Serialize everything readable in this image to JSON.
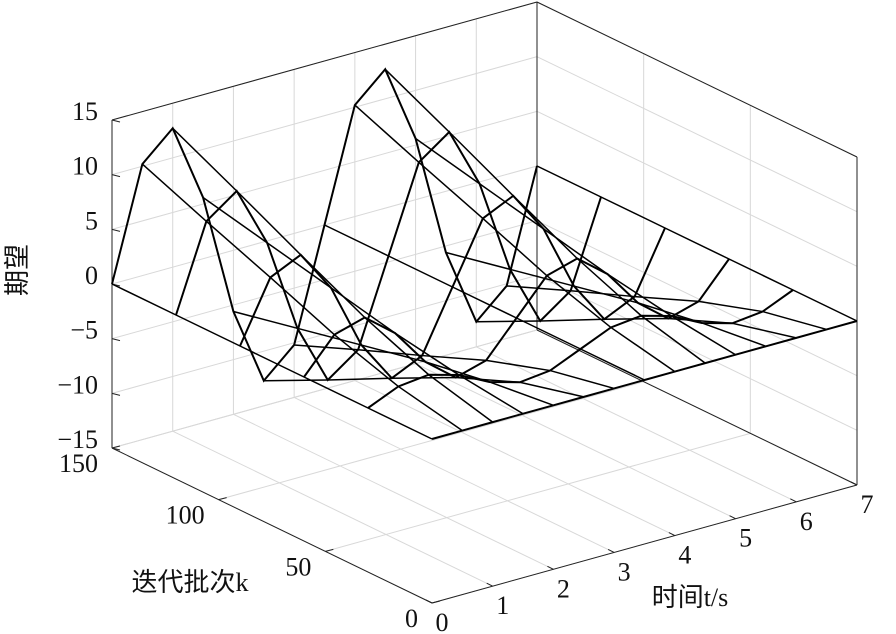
{
  "chart_data": {
    "type": "surface3d",
    "zlabel": "期望",
    "ylabel": "迭代批次k",
    "xlabel": "时间t/s",
    "t": [
      0,
      0.5,
      1,
      1.5,
      2,
      2.5,
      3,
      3.5,
      4,
      4.5,
      5,
      5.5,
      6,
      6.5,
      7
    ],
    "k": [
      0,
      30,
      60,
      90,
      120,
      150
    ],
    "z": [
      [
        0,
        0,
        0,
        0,
        0,
        0,
        0,
        0,
        0,
        0,
        0,
        0,
        0,
        0,
        0
      ],
      [
        0,
        1.2,
        1.5,
        0.7,
        -0.7,
        -1.5,
        -1.2,
        0,
        1.2,
        1.5,
        0.7,
        -0.7,
        -1.5,
        -1.2,
        0
      ],
      [
        0,
        3.1,
        3.9,
        1.7,
        -1.7,
        -3.9,
        -3.1,
        0,
        3.1,
        3.9,
        1.7,
        -1.7,
        -3.9,
        -3.1,
        0
      ],
      [
        0,
        5.5,
        6.8,
        3.0,
        -3.0,
        -6.8,
        -5.5,
        0,
        5.5,
        6.8,
        3.0,
        -3.0,
        -6.8,
        -5.5,
        0
      ],
      [
        0,
        7.8,
        9.8,
        4.3,
        -4.3,
        -9.8,
        -7.8,
        0,
        7.8,
        9.8,
        4.3,
        -4.3,
        -9.8,
        -7.8,
        0
      ],
      [
        0,
        10.2,
        12.7,
        5.6,
        -5.6,
        -12.7,
        -10.2,
        0,
        10.2,
        12.7,
        5.6,
        -5.6,
        -12.7,
        -10.2,
        0
      ]
    ],
    "color": "#000000",
    "xlim": [
      0,
      7
    ],
    "xticks": [
      0,
      1,
      2,
      3,
      4,
      5,
      6,
      7
    ],
    "ylim": [
      0,
      150
    ],
    "yticks": [
      0,
      50,
      100,
      150
    ],
    "zlim": [
      -15,
      15
    ],
    "zticks": [
      {
        "value": -15,
        "label": "−15"
      },
      {
        "value": -10,
        "label": "−10"
      },
      {
        "value": -5,
        "label": "−5"
      },
      0,
      5,
      10,
      15
    ],
    "grid": true
  }
}
